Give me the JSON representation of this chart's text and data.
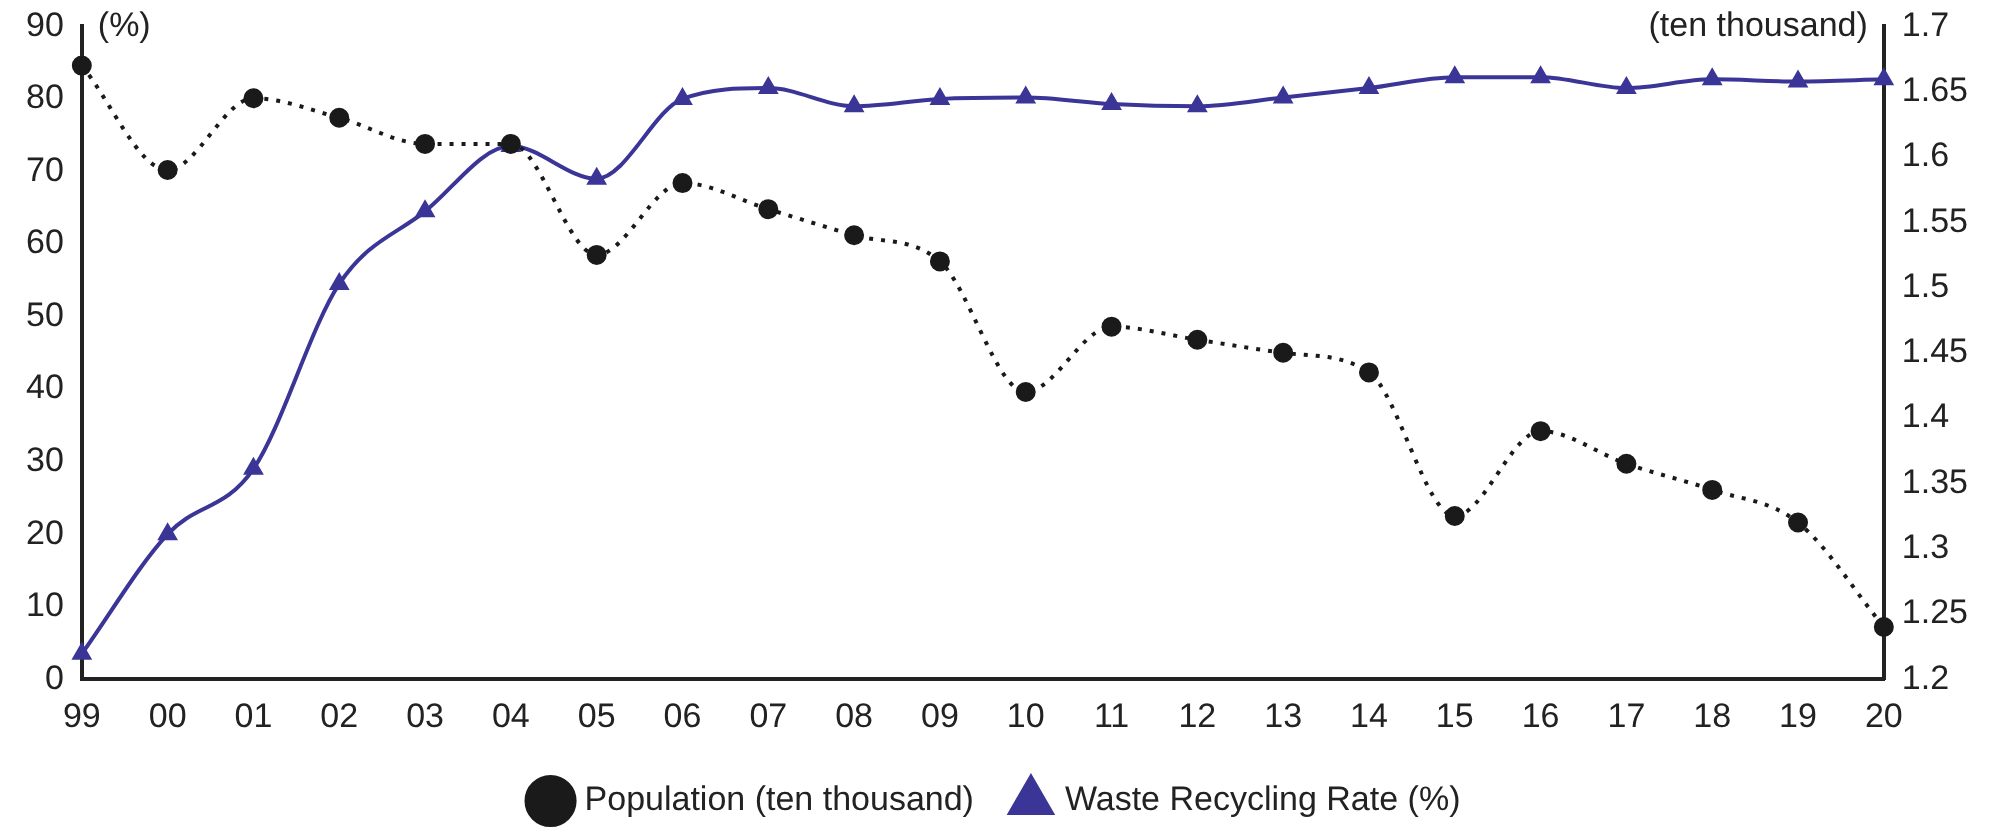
{
  "chart_data": {
    "type": "line",
    "ylabel": "(%)",
    "y2label": "(ten thousand)",
    "categories": [
      "99",
      "00",
      "01",
      "02",
      "03",
      "04",
      "05",
      "06",
      "07",
      "08",
      "09",
      "10",
      "11",
      "12",
      "13",
      "14",
      "15",
      "16",
      "17",
      "18",
      "19",
      "20"
    ],
    "series": [
      {
        "name": "Waste Recycling Rate (%)",
        "color": "#3a3596",
        "marker": "triangle",
        "line_style": "solid",
        "values": [
          3.5,
          20,
          29,
          54.5,
          64.5,
          73.5,
          69,
          80,
          81.5,
          79,
          80,
          80.2,
          79.3,
          79,
          80.2,
          81.5,
          83,
          83,
          81.5,
          82.7,
          82.4,
          82.7
        ]
      },
      {
        "name": "Population (ten thousand)",
        "color": "#1a1a1a",
        "marker": "circle",
        "line_style": "dotted",
        "axis": "y2",
        "values": [
          1.67,
          1.59,
          1.645,
          1.63,
          1.61,
          1.61,
          1.525,
          1.58,
          1.56,
          1.54,
          1.52,
          1.42,
          1.47,
          1.46,
          1.45,
          1.435,
          1.325,
          1.39,
          1.365,
          1.345,
          1.32,
          1.24
        ]
      }
    ],
    "ylim": [
      0,
      90
    ],
    "yticks": [
      0,
      10,
      20,
      30,
      40,
      50,
      60,
      70,
      80,
      90
    ],
    "y2lim": [
      1.2,
      1.7
    ],
    "y2ticks": [
      1.2,
      1.25,
      1.3,
      1.35,
      1.4,
      1.45,
      1.5,
      1.55,
      1.6,
      1.65,
      1.7
    ],
    "grid": false,
    "legend": "bottom"
  }
}
